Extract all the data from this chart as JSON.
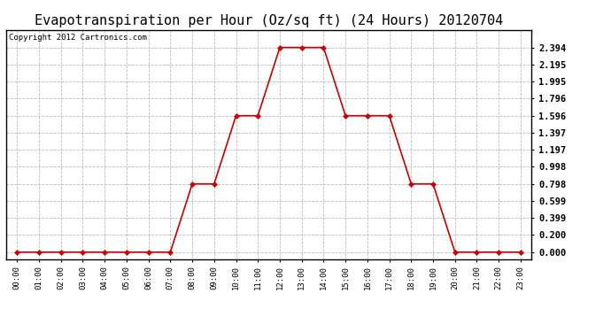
{
  "title": "Evapotranspiration per Hour (Oz/sq ft) (24 Hours) 20120704",
  "copyright": "Copyright 2012 Cartronics.com",
  "hours": [
    0,
    1,
    2,
    3,
    4,
    5,
    6,
    7,
    8,
    9,
    10,
    11,
    12,
    13,
    14,
    15,
    16,
    17,
    18,
    19,
    20,
    21,
    22,
    23
  ],
  "values": [
    0.0,
    0.0,
    0.0,
    0.0,
    0.0,
    0.0,
    0.0,
    0.0,
    0.798,
    0.798,
    1.596,
    1.596,
    2.394,
    2.394,
    2.394,
    1.596,
    1.596,
    1.596,
    0.798,
    0.798,
    0.0,
    0.0,
    0.0,
    0.0
  ],
  "line_color": "#cc0000",
  "marker": "D",
  "marker_size": 3,
  "bg_color": "#ffffff",
  "plot_bg_color": "#ffffff",
  "grid_color": "#bbbbbb",
  "yticks": [
    0.0,
    0.2,
    0.399,
    0.599,
    0.798,
    0.998,
    1.197,
    1.397,
    1.596,
    1.796,
    1.995,
    2.195,
    2.394
  ],
  "ylim": [
    -0.08,
    2.6
  ],
  "xlim": [
    -0.5,
    23.5
  ],
  "title_fontsize": 11,
  "copyright_fontsize": 6.5,
  "xtick_fontsize": 6.5,
  "ytick_fontsize": 7.5
}
